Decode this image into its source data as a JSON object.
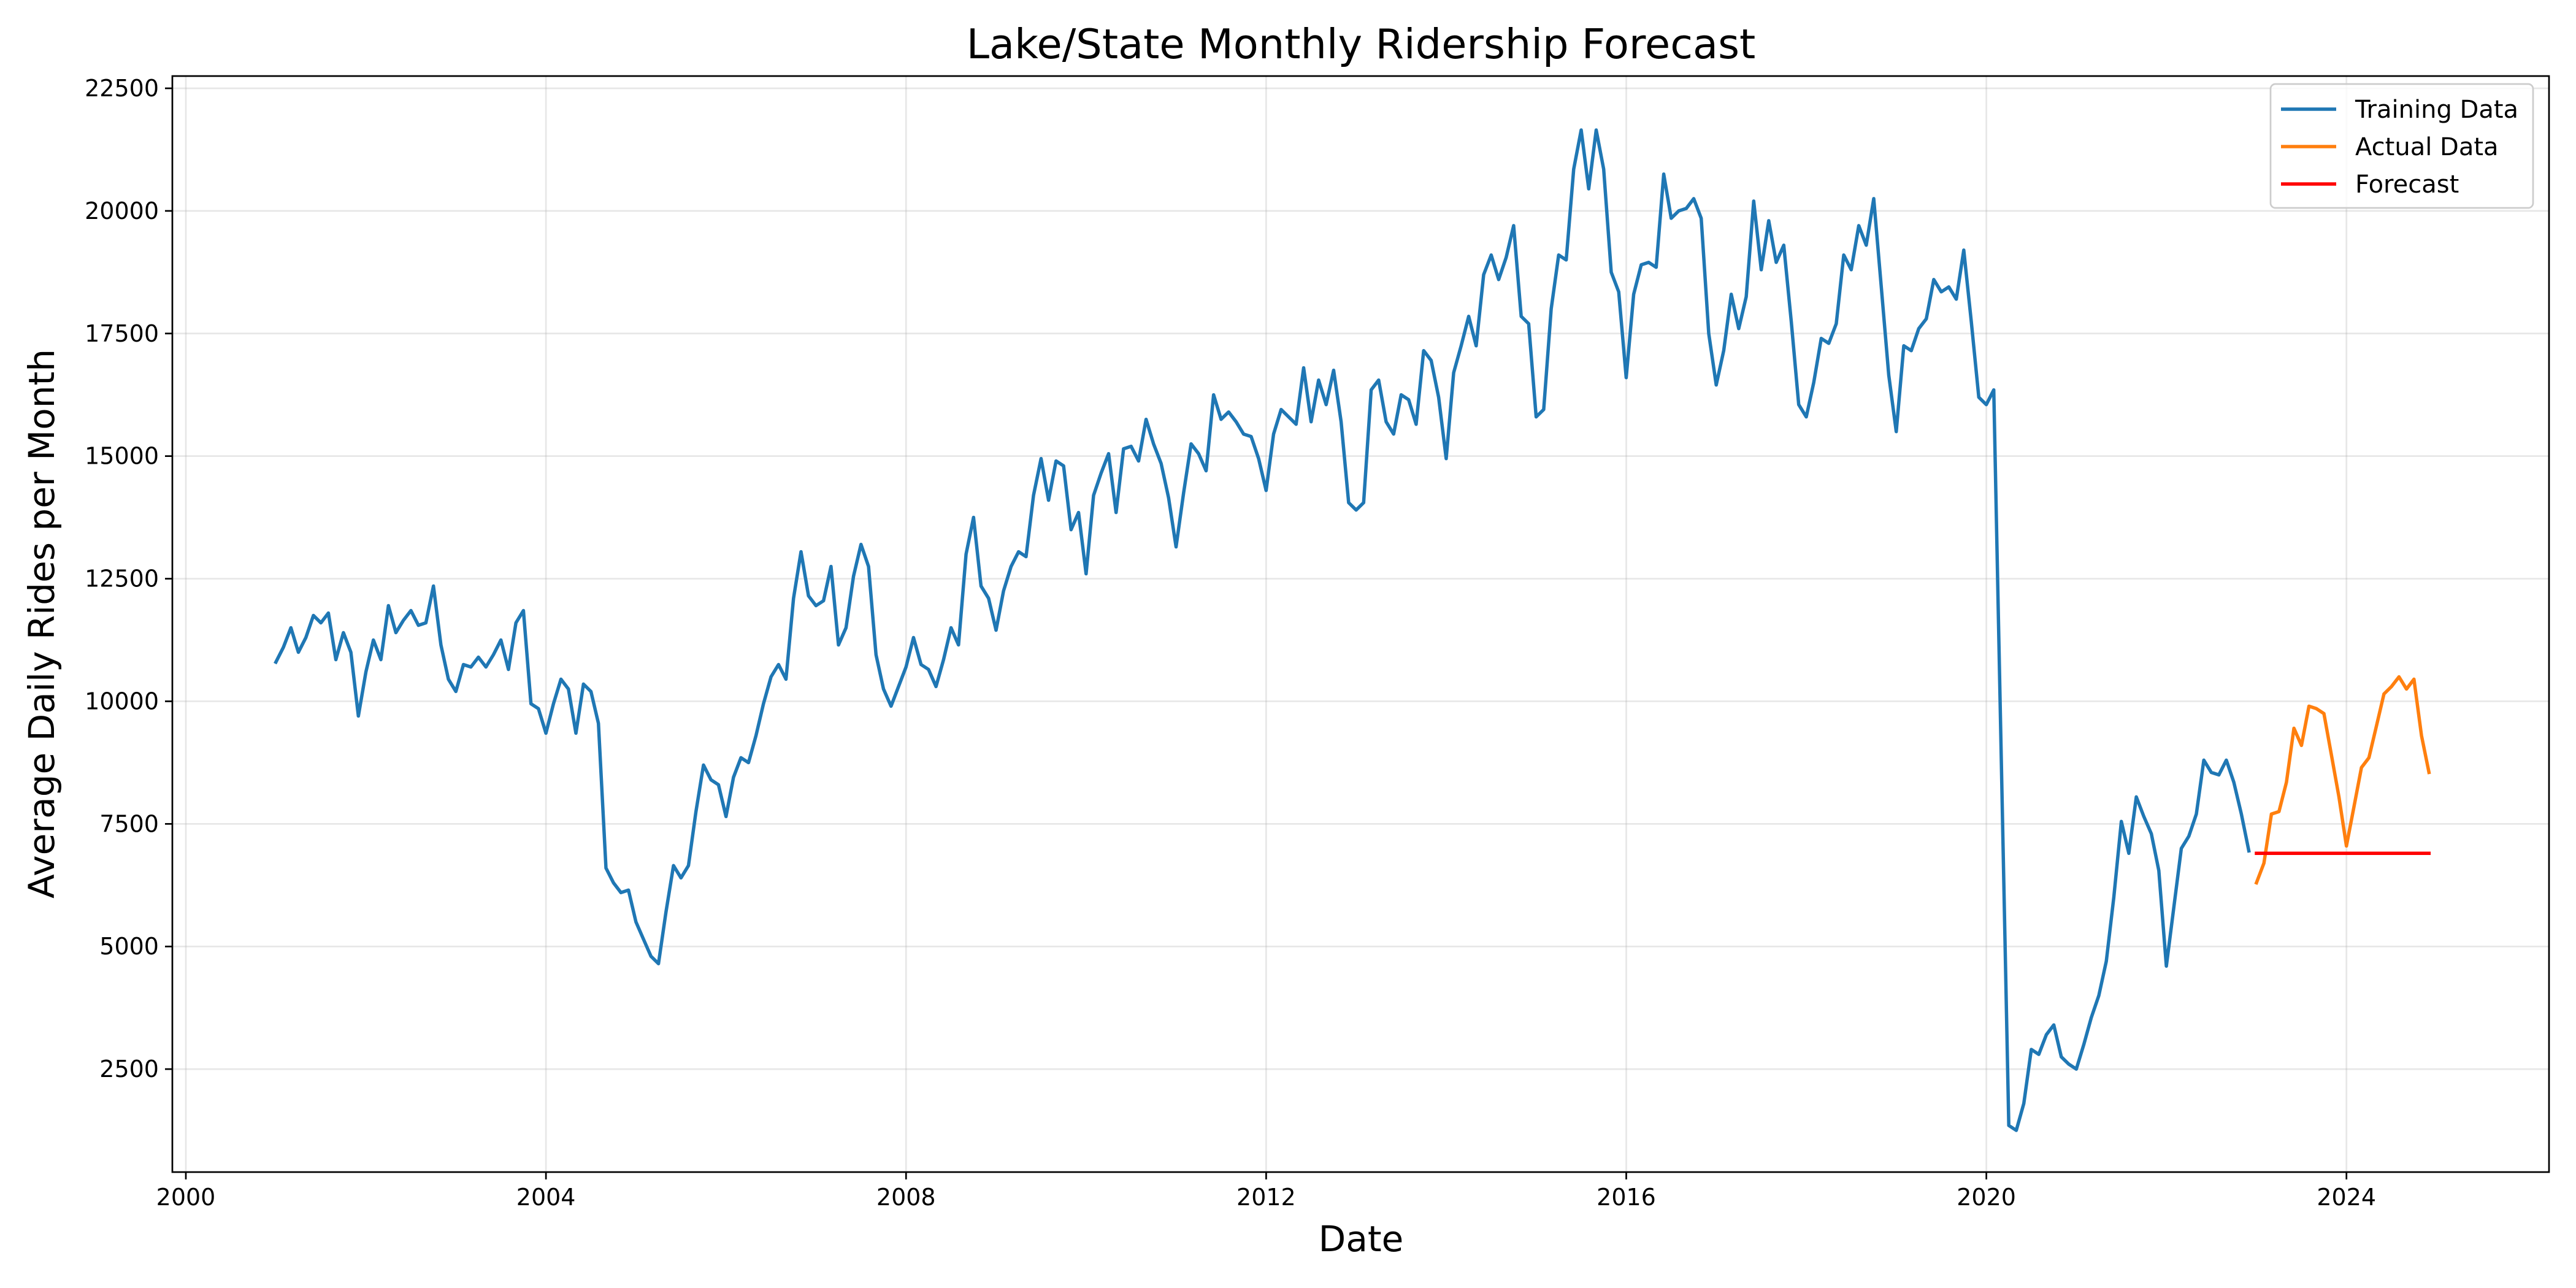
{
  "chart_data": {
    "type": "line",
    "title": "Lake/State Monthly Ridership Forecast",
    "xlabel": "Date",
    "ylabel": "Average Daily Rides per Month",
    "xlim": [
      1999.85,
      2026.25
    ],
    "ylim": [
      400,
      22750
    ],
    "grid": true,
    "legend_position": "top-right",
    "x_ticks": [
      2000,
      2004,
      2008,
      2012,
      2016,
      2020,
      2024
    ],
    "y_ticks": [
      2500,
      5000,
      7500,
      10000,
      12500,
      15000,
      17500,
      20000,
      22500
    ],
    "series": [
      {
        "name": "Training Data",
        "color": "#1f77b4",
        "x_start": 2001.0,
        "x_step": 0.08333,
        "values": [
          10800,
          11100,
          11500,
          11000,
          11300,
          11750,
          11600,
          11800,
          10850,
          11400,
          11000,
          9700,
          10600,
          11250,
          10850,
          11950,
          11400,
          11650,
          11850,
          11550,
          11600,
          12350,
          11150,
          10450,
          10200,
          10750,
          10700,
          10900,
          10700,
          10950,
          11250,
          10650,
          11600,
          11850,
          9950,
          9850,
          9350,
          9950,
          10450,
          10250,
          9350,
          10350,
          10200,
          9550,
          6600,
          6300,
          6100,
          6150,
          5500,
          5150,
          4800,
          4650,
          5700,
          6650,
          6400,
          6650,
          7750,
          8700,
          8400,
          8300,
          7650,
          8450,
          8850,
          8750,
          9300,
          9950,
          10500,
          10750,
          10450,
          12100,
          13050,
          12150,
          11950,
          12050,
          12750,
          11150,
          11500,
          12550,
          13200,
          12750,
          10950,
          10250,
          9900,
          10300,
          10700,
          11300,
          10750,
          10650,
          10300,
          10850,
          11500,
          11150,
          13000,
          13750,
          12350,
          12100,
          11450,
          12250,
          12750,
          13050,
          12950,
          14200,
          14950,
          14100,
          14900,
          14800,
          13500,
          13850,
          12600,
          14200,
          14650,
          15050,
          13850,
          15150,
          15200,
          14900,
          15750,
          15250,
          14850,
          14150,
          13150,
          14250,
          15250,
          15050,
          14700,
          16250,
          15750,
          15900,
          15700,
          15450,
          15400,
          14950,
          14300,
          15450,
          15950,
          15800,
          15650,
          16800,
          15700,
          16550,
          16050,
          16750,
          15700,
          14050,
          13900,
          14050,
          16350,
          16550,
          15700,
          15450,
          16250,
          16150,
          15650,
          17150,
          16950,
          16200,
          14950,
          16700,
          17250,
          17850,
          17250,
          18700,
          19100,
          18600,
          19050,
          19700,
          17850,
          17700,
          15800,
          15950,
          18000,
          19100,
          19000,
          20850,
          21650,
          20450,
          21650,
          20850,
          18750,
          18350,
          16600,
          18300,
          18900,
          18950,
          18850,
          20750,
          19850,
          20000,
          20050,
          20250,
          19850,
          17500,
          16450,
          17150,
          18300,
          17600,
          18250,
          20200,
          18800,
          19800,
          18950,
          19300,
          17750,
          16050,
          15800,
          16500,
          17400,
          17300,
          17700,
          19100,
          18800,
          19700,
          19300,
          20250,
          18450,
          16650,
          15500,
          17250,
          17150,
          17600,
          17800,
          18600,
          18350,
          18450,
          18200,
          19200,
          17750,
          16200,
          16050,
          16350,
          8800,
          1350,
          1250,
          1800,
          2900,
          2800,
          3200,
          3400,
          2750,
          2600,
          2500,
          3000,
          3550,
          4000,
          4700,
          6000,
          7550,
          6900,
          8050,
          7650,
          7300,
          6550,
          4600,
          5800,
          7000,
          7250,
          7700,
          8800,
          8550,
          8500,
          8800,
          8350,
          7700,
          6950
        ]
      },
      {
        "name": "Actual Data",
        "color": "#ff7f0e",
        "x_start": 2023.0,
        "x_step": 0.08333,
        "values": [
          6300,
          6700,
          7700,
          7750,
          8350,
          9450,
          9100,
          9900,
          9850,
          9750,
          8900,
          8050,
          7050,
          7850,
          8650,
          8850,
          9500,
          10150,
          10300,
          10500,
          10250,
          10450,
          9300,
          8550
        ]
      },
      {
        "name": "Forecast",
        "color": "#ff0000",
        "x_start": 2023.0,
        "x_step": 0.08333,
        "values": [
          6900,
          6900,
          6900,
          6900,
          6900,
          6900,
          6900,
          6900,
          6900,
          6900,
          6900,
          6900,
          6900,
          6900,
          6900,
          6900,
          6900,
          6900,
          6900,
          6900,
          6900,
          6900,
          6900,
          6900
        ]
      }
    ]
  }
}
